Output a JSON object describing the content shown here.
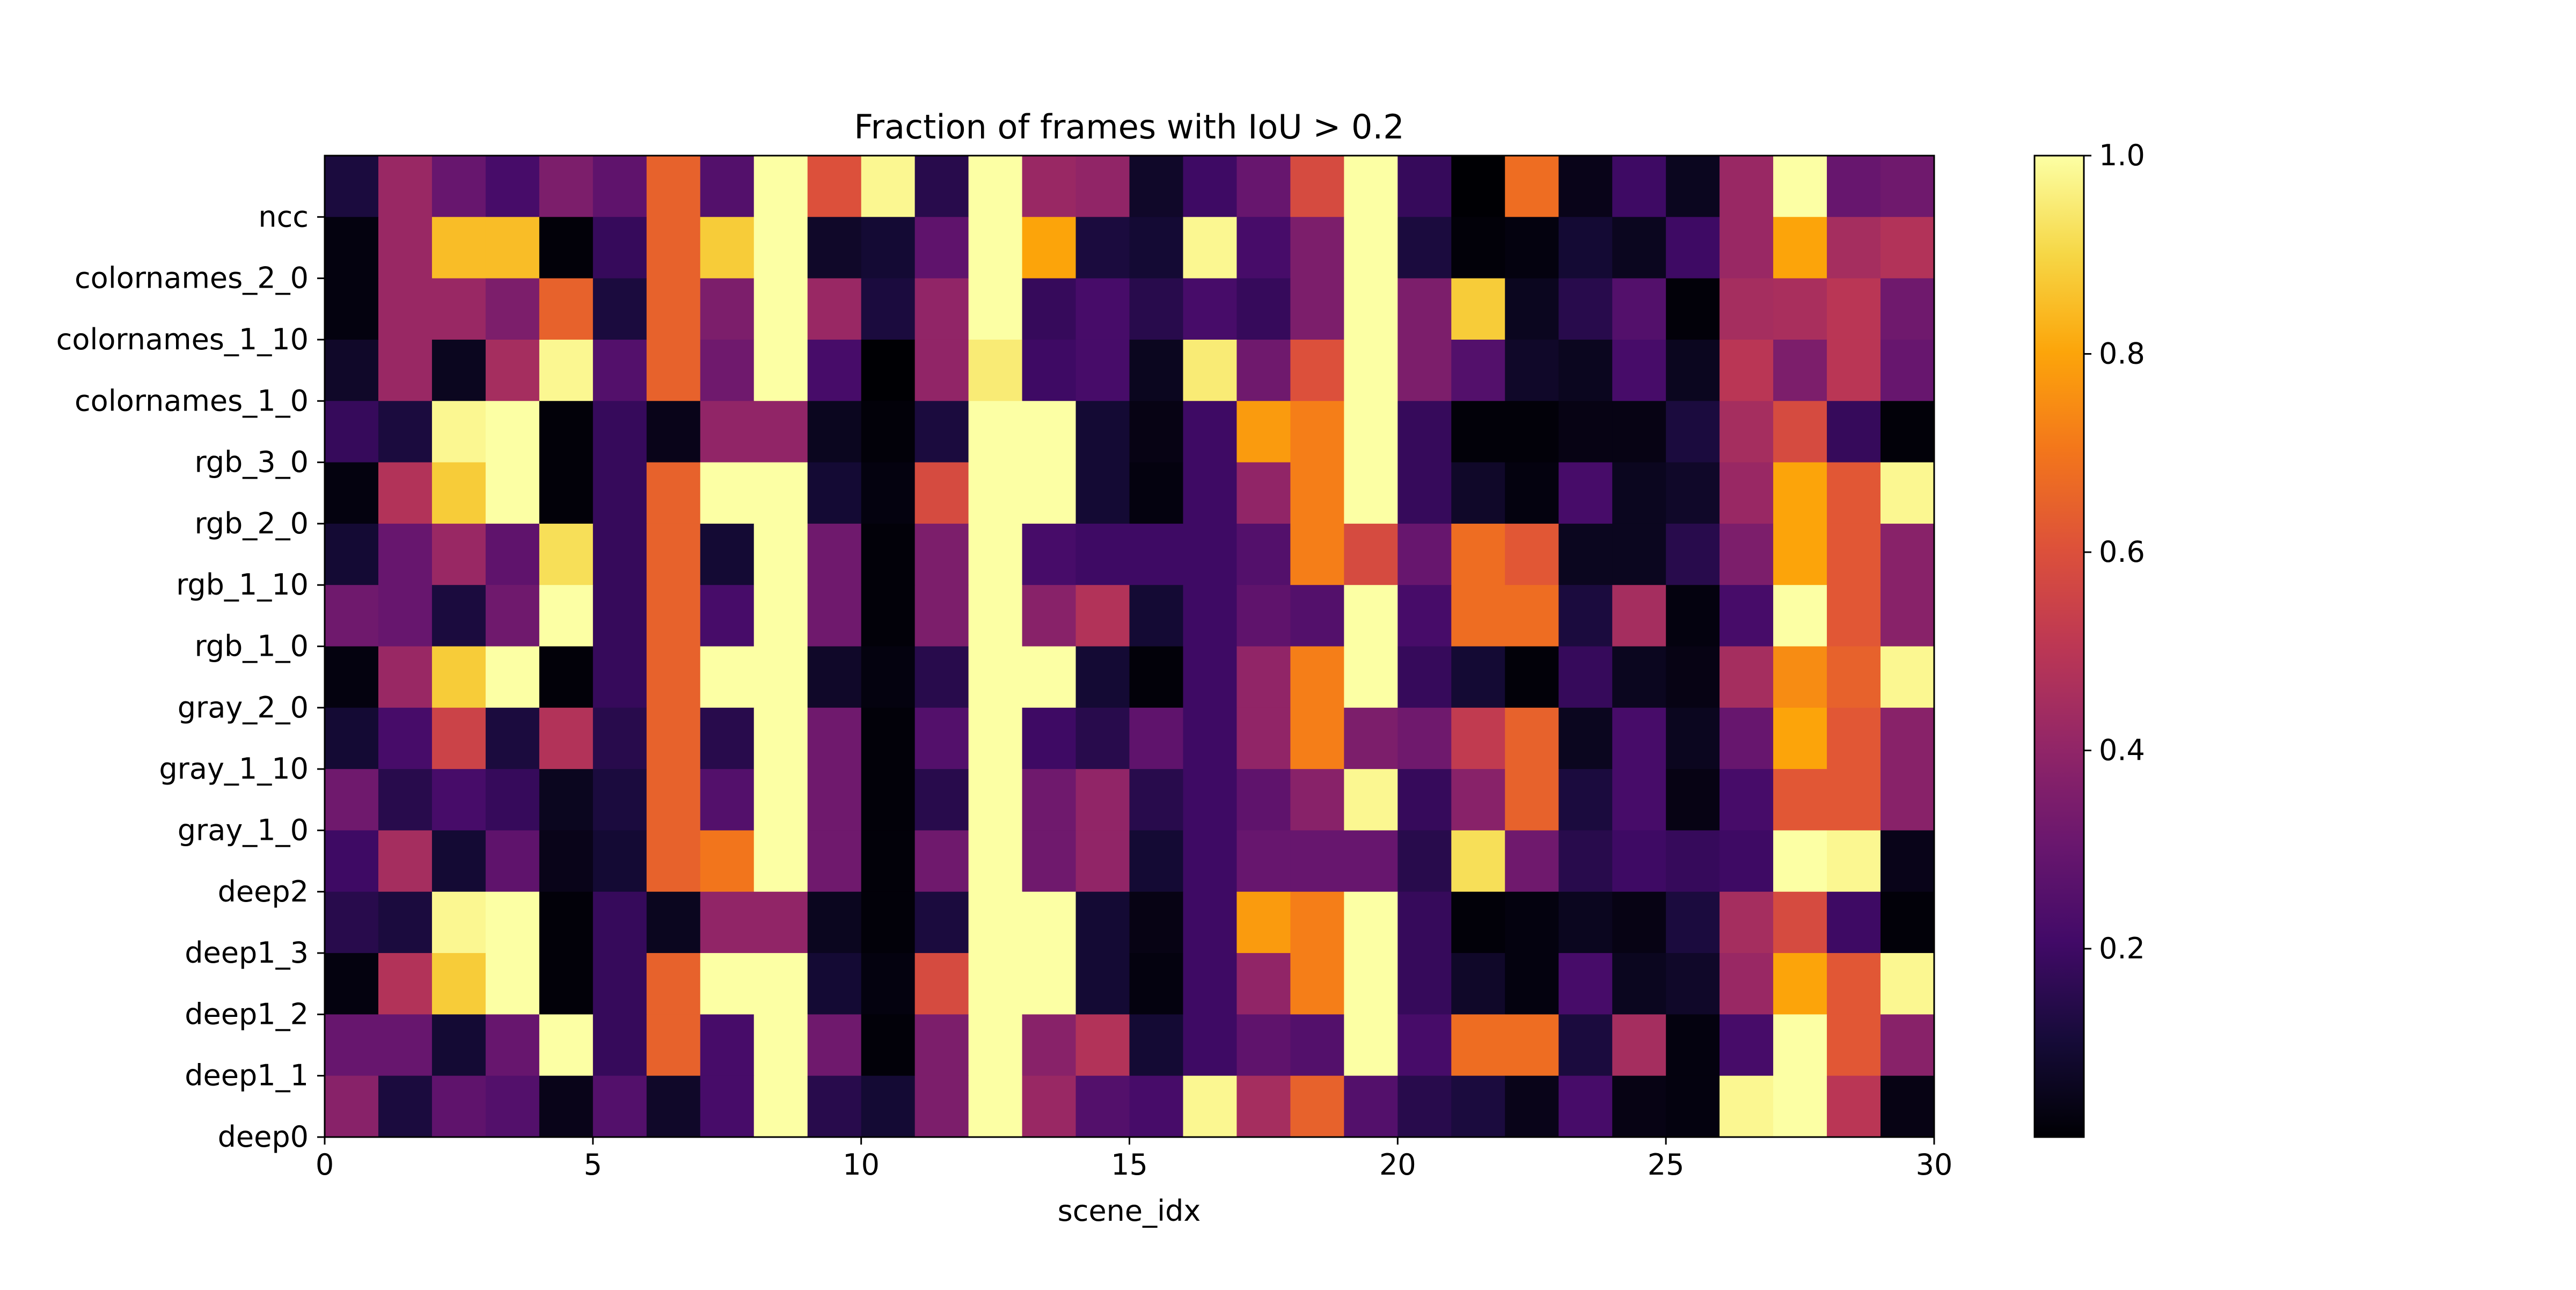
{
  "chart_data": {
    "type": "heatmap",
    "title": "Fraction of frames with IoU > 0.2",
    "xlabel": "scene_idx",
    "ylabel": "",
    "colormap": "inferno",
    "x_ticks": [
      "0",
      "5",
      "10",
      "15",
      "20",
      "25",
      "30"
    ],
    "xlim": [
      0,
      30
    ],
    "y_tick_labels": [
      "deep0",
      "deep1_1",
      "deep1_2",
      "deep1_3",
      "deep2",
      "gray_1_0",
      "gray_1_10",
      "gray_2_0",
      "rgb_1_0",
      "rgb_1_10",
      "rgb_2_0",
      "rgb_3_0",
      "colornames_1_0",
      "colornames_1_10",
      "colornames_2_0",
      "ncc"
    ],
    "colorbar": {
      "range": [
        0.01,
        1.0
      ],
      "ticks": [
        "0.2",
        "0.4",
        "0.6",
        "0.8",
        "1.0"
      ]
    },
    "n_rows": 16,
    "n_cols": 30,
    "note_row_order": "rows listed top to bottom",
    "rows": [
      [
        0.12,
        0.42,
        0.3,
        0.22,
        0.35,
        0.28,
        0.65,
        0.25,
        1.0,
        0.6,
        0.98,
        0.15,
        1.0,
        0.42,
        0.4,
        0.08,
        0.2,
        0.3,
        0.58,
        1.0,
        0.18,
        0.0,
        0.68,
        0.05,
        0.2,
        0.06,
        0.42,
        1.0,
        0.3,
        0.32
      ],
      [
        0.03,
        0.42,
        0.85,
        0.85,
        0.02,
        0.18,
        0.65,
        0.88,
        1.0,
        0.08,
        0.1,
        0.28,
        1.0,
        0.8,
        0.12,
        0.1,
        0.98,
        0.22,
        0.35,
        1.0,
        0.12,
        0.02,
        0.03,
        0.1,
        0.06,
        0.2,
        0.42,
        0.8,
        0.45,
        0.48
      ],
      [
        0.03,
        0.42,
        0.42,
        0.35,
        0.65,
        0.12,
        0.65,
        0.35,
        1.0,
        0.42,
        0.12,
        0.4,
        1.0,
        0.18,
        0.22,
        0.15,
        0.22,
        0.18,
        0.35,
        1.0,
        0.35,
        0.88,
        0.06,
        0.15,
        0.25,
        0.02,
        0.45,
        0.46,
        0.5,
        0.32
      ],
      [
        0.08,
        0.42,
        0.06,
        0.45,
        0.98,
        0.25,
        0.65,
        0.32,
        1.0,
        0.22,
        0.01,
        0.4,
        0.95,
        0.2,
        0.22,
        0.06,
        0.95,
        0.32,
        0.6,
        1.0,
        0.35,
        0.25,
        0.08,
        0.06,
        0.22,
        0.06,
        0.5,
        0.35,
        0.5,
        0.3
      ],
      [
        0.18,
        0.12,
        0.98,
        1.0,
        0.02,
        0.18,
        0.05,
        0.4,
        0.4,
        0.06,
        0.02,
        0.12,
        1.0,
        1.0,
        0.1,
        0.04,
        0.2,
        0.78,
        0.72,
        1.0,
        0.18,
        0.02,
        0.02,
        0.04,
        0.04,
        0.12,
        0.45,
        0.58,
        0.18,
        0.02
      ],
      [
        0.03,
        0.48,
        0.88,
        1.0,
        0.02,
        0.18,
        0.65,
        1.0,
        1.0,
        0.1,
        0.03,
        0.58,
        1.0,
        1.0,
        0.1,
        0.03,
        0.2,
        0.4,
        0.72,
        1.0,
        0.18,
        0.08,
        0.03,
        0.22,
        0.06,
        0.08,
        0.42,
        0.8,
        0.62,
        0.98
      ],
      [
        0.1,
        0.3,
        0.42,
        0.28,
        0.92,
        0.18,
        0.65,
        0.1,
        1.0,
        0.32,
        0.02,
        0.35,
        1.0,
        0.22,
        0.2,
        0.2,
        0.2,
        0.25,
        0.72,
        0.58,
        0.3,
        0.68,
        0.62,
        0.06,
        0.06,
        0.15,
        0.35,
        0.8,
        0.62,
        0.38
      ],
      [
        0.32,
        0.3,
        0.12,
        0.32,
        1.0,
        0.18,
        0.65,
        0.22,
        1.0,
        0.32,
        0.02,
        0.35,
        1.0,
        0.38,
        0.48,
        0.1,
        0.2,
        0.28,
        0.25,
        1.0,
        0.22,
        0.68,
        0.68,
        0.12,
        0.45,
        0.03,
        0.22,
        1.0,
        0.62,
        0.38
      ],
      [
        0.03,
        0.42,
        0.88,
        1.0,
        0.02,
        0.18,
        0.65,
        1.0,
        1.0,
        0.08,
        0.03,
        0.15,
        1.0,
        1.0,
        0.1,
        0.02,
        0.2,
        0.4,
        0.72,
        1.0,
        0.18,
        0.1,
        0.02,
        0.18,
        0.06,
        0.04,
        0.45,
        0.75,
        0.65,
        0.98
      ],
      [
        0.1,
        0.22,
        0.55,
        0.12,
        0.48,
        0.15,
        0.65,
        0.15,
        1.0,
        0.32,
        0.02,
        0.25,
        1.0,
        0.2,
        0.15,
        0.28,
        0.2,
        0.4,
        0.72,
        0.35,
        0.32,
        0.52,
        0.65,
        0.06,
        0.22,
        0.06,
        0.3,
        0.8,
        0.62,
        0.38
      ],
      [
        0.32,
        0.15,
        0.22,
        0.18,
        0.06,
        0.12,
        0.65,
        0.25,
        1.0,
        0.32,
        0.02,
        0.15,
        1.0,
        0.32,
        0.4,
        0.15,
        0.2,
        0.28,
        0.38,
        0.98,
        0.18,
        0.38,
        0.65,
        0.12,
        0.22,
        0.04,
        0.22,
        0.62,
        0.62,
        0.38
      ],
      [
        0.2,
        0.45,
        0.1,
        0.28,
        0.05,
        0.1,
        0.65,
        0.7,
        1.0,
        0.32,
        0.02,
        0.32,
        1.0,
        0.32,
        0.4,
        0.1,
        0.2,
        0.3,
        0.3,
        0.3,
        0.15,
        0.92,
        0.32,
        0.15,
        0.2,
        0.18,
        0.2,
        1.0,
        0.98,
        0.05
      ],
      [
        0.15,
        0.12,
        0.98,
        1.0,
        0.02,
        0.18,
        0.06,
        0.4,
        0.4,
        0.06,
        0.02,
        0.12,
        1.0,
        1.0,
        0.1,
        0.04,
        0.2,
        0.78,
        0.72,
        1.0,
        0.18,
        0.02,
        0.03,
        0.06,
        0.04,
        0.12,
        0.45,
        0.58,
        0.2,
        0.02
      ],
      [
        0.03,
        0.48,
        0.88,
        1.0,
        0.02,
        0.18,
        0.65,
        1.0,
        1.0,
        0.1,
        0.03,
        0.58,
        1.0,
        1.0,
        0.1,
        0.03,
        0.2,
        0.4,
        0.72,
        1.0,
        0.18,
        0.08,
        0.03,
        0.22,
        0.06,
        0.08,
        0.42,
        0.8,
        0.62,
        0.98
      ],
      [
        0.3,
        0.3,
        0.1,
        0.3,
        1.0,
        0.18,
        0.65,
        0.22,
        1.0,
        0.32,
        0.02,
        0.35,
        1.0,
        0.38,
        0.48,
        0.1,
        0.2,
        0.28,
        0.25,
        1.0,
        0.22,
        0.68,
        0.68,
        0.12,
        0.45,
        0.03,
        0.22,
        1.0,
        0.62,
        0.38
      ],
      [
        0.38,
        0.12,
        0.28,
        0.25,
        0.05,
        0.25,
        0.08,
        0.22,
        1.0,
        0.15,
        0.1,
        0.35,
        1.0,
        0.42,
        0.25,
        0.22,
        0.98,
        0.45,
        0.65,
        0.25,
        0.15,
        0.12,
        0.05,
        0.22,
        0.04,
        0.03,
        0.98,
        1.0,
        0.5,
        0.04
      ]
    ]
  }
}
